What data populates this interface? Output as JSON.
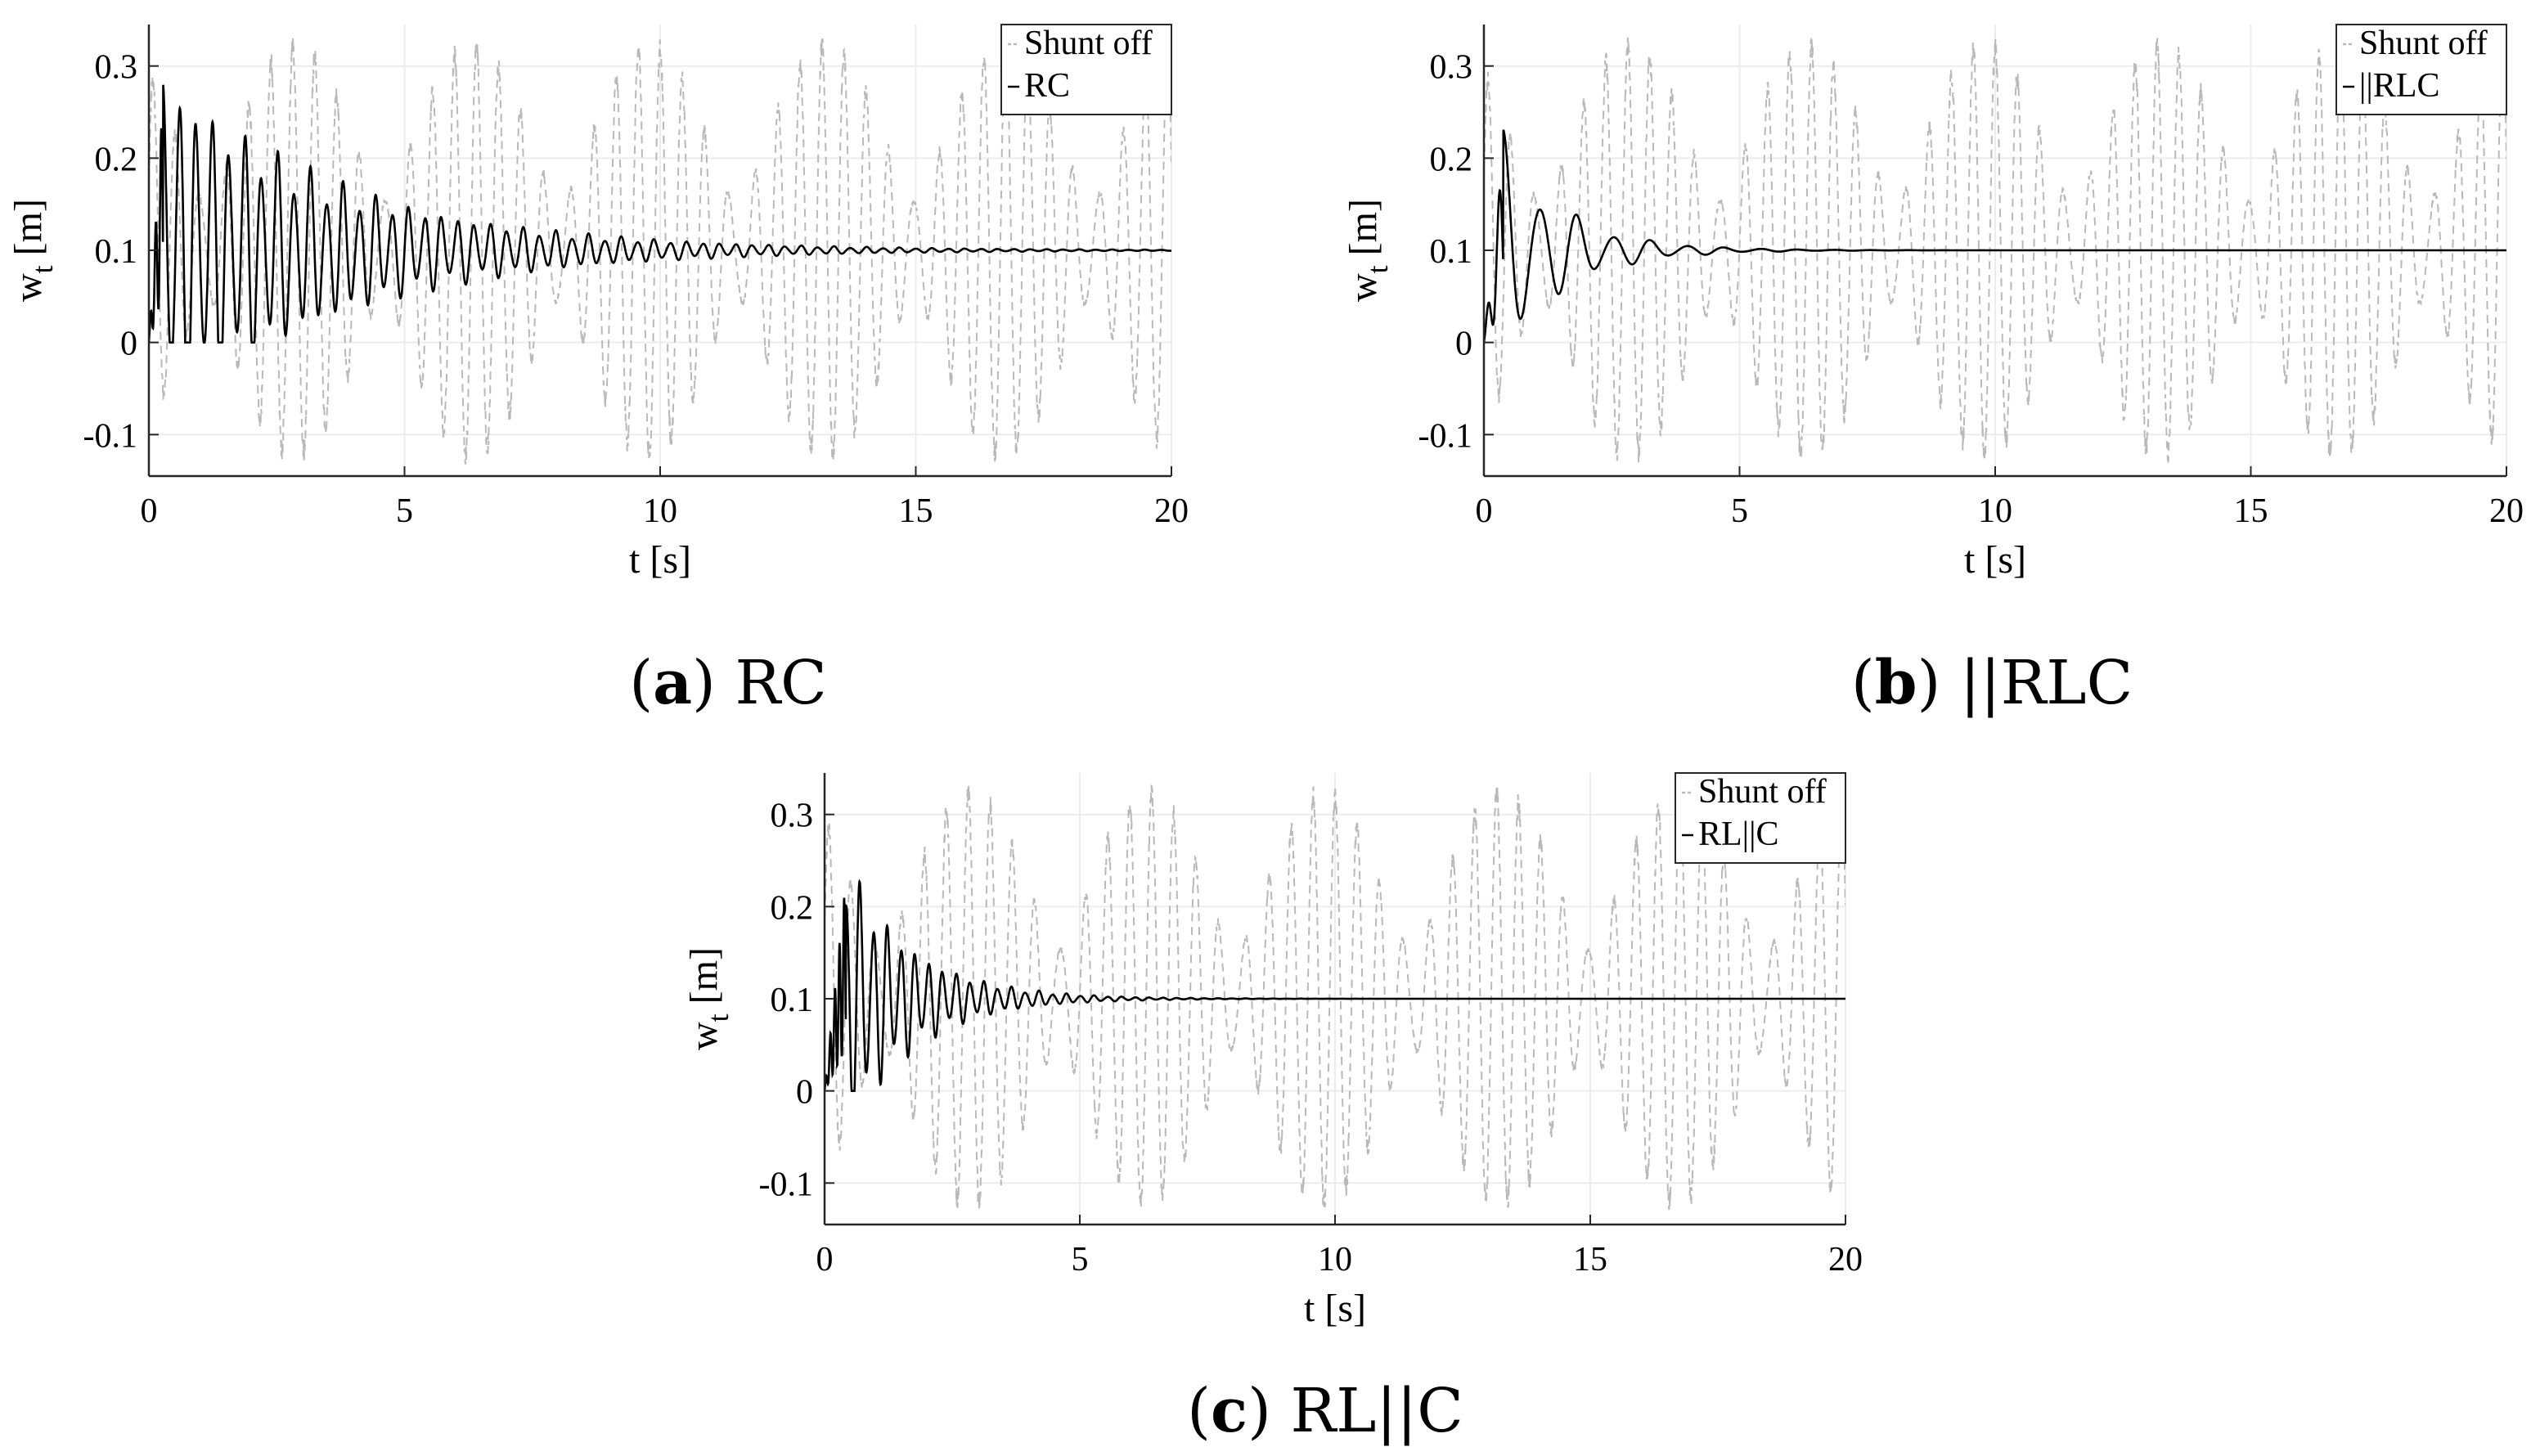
{
  "colors": {
    "axis": "#262626",
    "grid": "#ececec",
    "shunt_off": "#b9b9b9",
    "shunted": "#000000"
  },
  "chart_data": [
    {
      "type": "line",
      "panel_letter": "a",
      "caption": "RC",
      "xlabel": "t [s]",
      "ylabel": "w_t [m]",
      "xlim": [
        0,
        20
      ],
      "ylim": [
        -0.145,
        0.345
      ],
      "x_ticks": [
        0,
        5,
        10,
        15,
        20
      ],
      "y_ticks": [
        -0.1,
        0,
        0.1,
        0.2,
        0.3
      ],
      "x_tick_labels": [
        "0",
        "5",
        "10",
        "15",
        "20"
      ],
      "y_tick_labels": [
        "-0.1",
        "0",
        "0.1",
        "0.2",
        "0.3"
      ],
      "grid": true,
      "legend": {
        "placement": "top-right",
        "entries": [
          "Shunt off",
          "RC"
        ]
      },
      "series": [
        {
          "name": "Shunt off",
          "style": "dashed",
          "kind": "undamped",
          "mean": 0.1,
          "amplitude": 0.235,
          "period_s": 0.45
        },
        {
          "name": "RC",
          "style": "solid",
          "kind": "damped",
          "final_value": 0.1,
          "peak_value": 0.27,
          "peak_time_s": 0.28,
          "decay_time_s": 3.4,
          "period_s": 0.32,
          "settled_by_s": 15
        }
      ]
    },
    {
      "type": "line",
      "panel_letter": "b",
      "caption": "||RLC",
      "xlabel": "t [s]",
      "ylabel": "w_t [m]",
      "xlim": [
        0,
        20
      ],
      "ylim": [
        -0.145,
        0.345
      ],
      "x_ticks": [
        0,
        5,
        10,
        15,
        20
      ],
      "y_ticks": [
        -0.1,
        0,
        0.1,
        0.2,
        0.3
      ],
      "x_tick_labels": [
        "0",
        "5",
        "10",
        "15",
        "20"
      ],
      "y_tick_labels": [
        "-0.1",
        "0",
        "0.1",
        "0.2",
        "0.3"
      ],
      "grid": true,
      "legend": {
        "placement": "top-right",
        "entries": [
          "Shunt off",
          "||RLC"
        ]
      },
      "series": [
        {
          "name": "Shunt off",
          "style": "dashed",
          "kind": "undamped",
          "mean": 0.1,
          "amplitude": 0.235,
          "period_s": 0.45
        },
        {
          "name": "||RLC",
          "style": "solid",
          "kind": "damped",
          "final_value": 0.1,
          "peak_value": 0.205,
          "peak_time_s": 0.38,
          "decay_time_s": 1.2,
          "period_s": 0.72,
          "settled_by_s": 6
        }
      ]
    },
    {
      "type": "line",
      "panel_letter": "c",
      "caption": "RL||C",
      "xlabel": "t [s]",
      "ylabel": "w_t [m]",
      "xlim": [
        0,
        20
      ],
      "ylim": [
        -0.145,
        0.345
      ],
      "x_ticks": [
        0,
        5,
        10,
        15,
        20
      ],
      "y_ticks": [
        -0.1,
        0,
        0.1,
        0.2,
        0.3
      ],
      "x_tick_labels": [
        "0",
        "5",
        "10",
        "15",
        "20"
      ],
      "y_tick_labels": [
        "-0.1",
        "0",
        "0.1",
        "0.2",
        "0.3"
      ],
      "grid": true,
      "legend": {
        "placement": "top-right",
        "entries": [
          "Shunt off",
          "RL||C"
        ]
      },
      "series": [
        {
          "name": "Shunt off",
          "style": "dashed",
          "kind": "undamped",
          "mean": 0.1,
          "amplitude": 0.235,
          "period_s": 0.45
        },
        {
          "name": "RL||C",
          "style": "solid",
          "kind": "damped",
          "final_value": 0.1,
          "peak_value": 0.23,
          "peak_time_s": 0.42,
          "decay_time_s": 1.3,
          "period_s": 0.27,
          "settled_by_s": 6
        }
      ]
    }
  ]
}
